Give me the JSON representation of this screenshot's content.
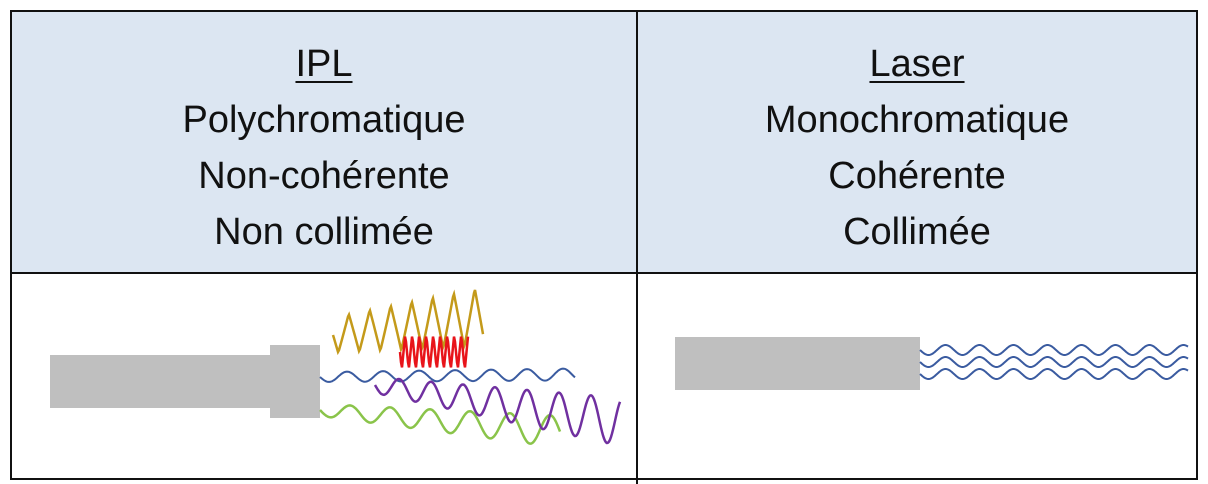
{
  "columns": [
    {
      "title": "IPL",
      "lines": [
        "Polychromatique",
        "Non-cohérente",
        "Non collimée"
      ]
    },
    {
      "title": "Laser",
      "lines": [
        "Monochromatique",
        "Cohérente",
        "Collimée"
      ]
    }
  ]
}
